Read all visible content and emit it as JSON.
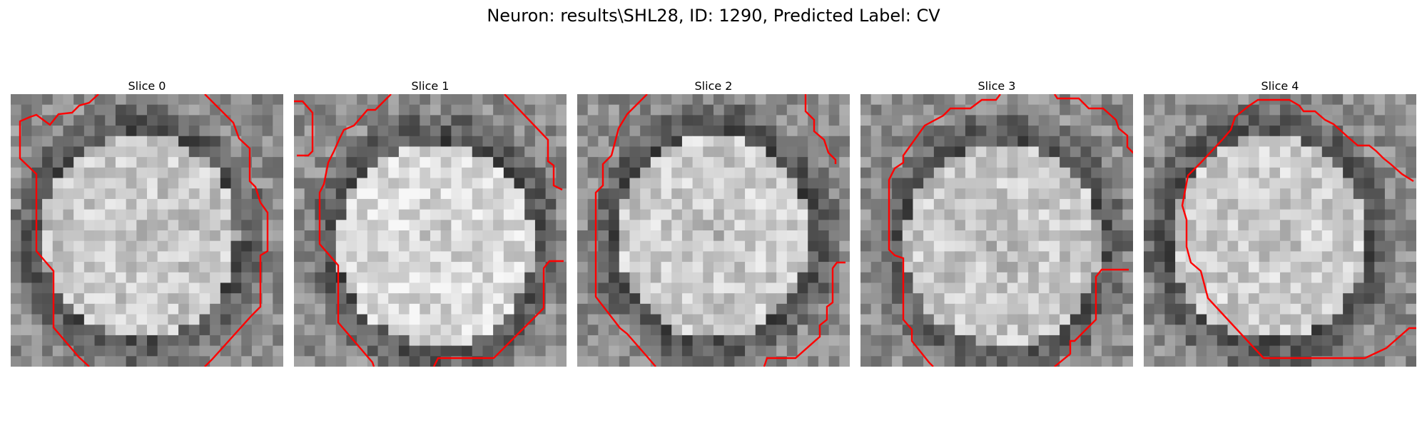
{
  "figure": {
    "title": "Neuron: results\\SHL28, ID: 1290, Predicted Label: CV"
  },
  "slices": [
    {
      "title": "Slice 0",
      "seed": 11,
      "center": [
        0.47,
        0.52
      ],
      "brightness": 0.78
    },
    {
      "title": "Slice 1",
      "seed": 23,
      "center": [
        0.52,
        0.55
      ],
      "brightness": 0.86
    },
    {
      "title": "Slice 2",
      "seed": 37,
      "center": [
        0.5,
        0.52
      ],
      "brightness": 0.8
    },
    {
      "title": "Slice 3",
      "seed": 41,
      "center": [
        0.52,
        0.55
      ],
      "brightness": 0.78
    },
    {
      "title": "Slice 4",
      "seed": 59,
      "center": [
        0.46,
        0.53
      ],
      "brightness": 0.8
    }
  ],
  "colors": {
    "contour": "#ff0000",
    "background": "#ffffff"
  }
}
